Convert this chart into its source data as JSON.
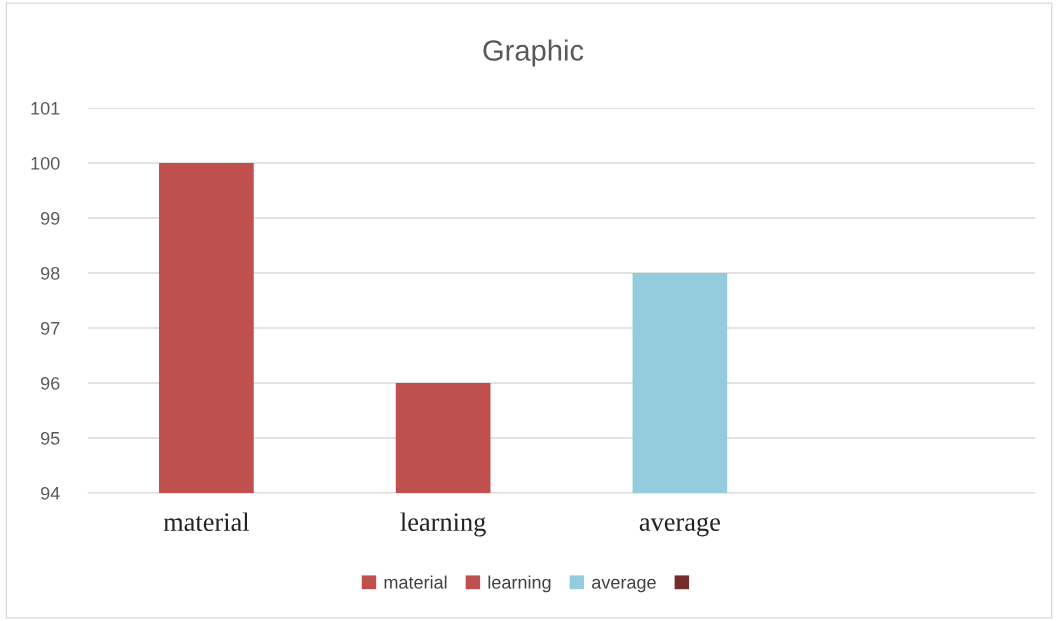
{
  "chart_data": {
    "type": "bar",
    "title": "Graphic",
    "categories": [
      "material",
      "learning",
      "average",
      null
    ],
    "stacked": true,
    "series": [
      {
        "name": "material",
        "color": "#c0504d",
        "values": [
          100,
          null,
          null,
          null
        ]
      },
      {
        "name": "learning",
        "color": "#c0504d",
        "values": [
          null,
          96,
          null,
          null
        ]
      },
      {
        "name": "average",
        "color": "#93cddd",
        "values": [
          null,
          null,
          98,
          null
        ]
      },
      {
        "color": "#772c2a",
        "values": [
          null,
          null,
          null,
          null
        ]
      }
    ],
    "ylim": [
      94,
      101
    ],
    "yticks": [
      94,
      95,
      96,
      97,
      98,
      99,
      100,
      101
    ],
    "grid": "y",
    "legend": "bottom"
  }
}
